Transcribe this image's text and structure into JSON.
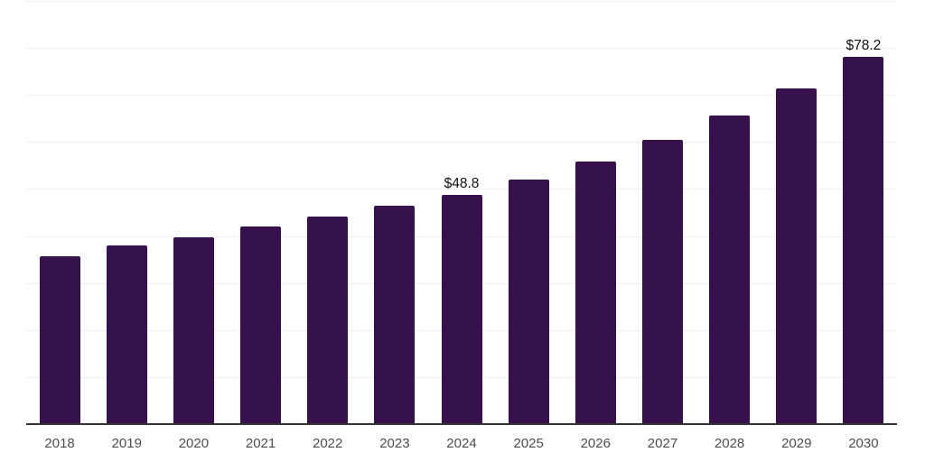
{
  "chart_data": {
    "type": "bar",
    "title": "",
    "xlabel": "",
    "ylabel": "",
    "categories": [
      "2018",
      "2019",
      "2020",
      "2021",
      "2022",
      "2023",
      "2024",
      "2025",
      "2026",
      "2027",
      "2028",
      "2029",
      "2030"
    ],
    "values": [
      35.7,
      38.0,
      39.8,
      42.1,
      44.1,
      46.4,
      48.8,
      52.1,
      55.9,
      60.4,
      65.6,
      71.3,
      78.2
    ],
    "data_labels": [
      null,
      null,
      null,
      null,
      null,
      null,
      "$48.8",
      null,
      null,
      null,
      null,
      null,
      "$78.2"
    ],
    "ylim": [
      0,
      90
    ],
    "gridline_step": 10,
    "grid": true,
    "legend": false,
    "colors": {
      "bar": "#36114D",
      "gridline": "#efefef",
      "axis_line": "#333333",
      "tick_label": "#4d4d4d",
      "data_label": "#111111",
      "background": "#ffffff"
    }
  }
}
